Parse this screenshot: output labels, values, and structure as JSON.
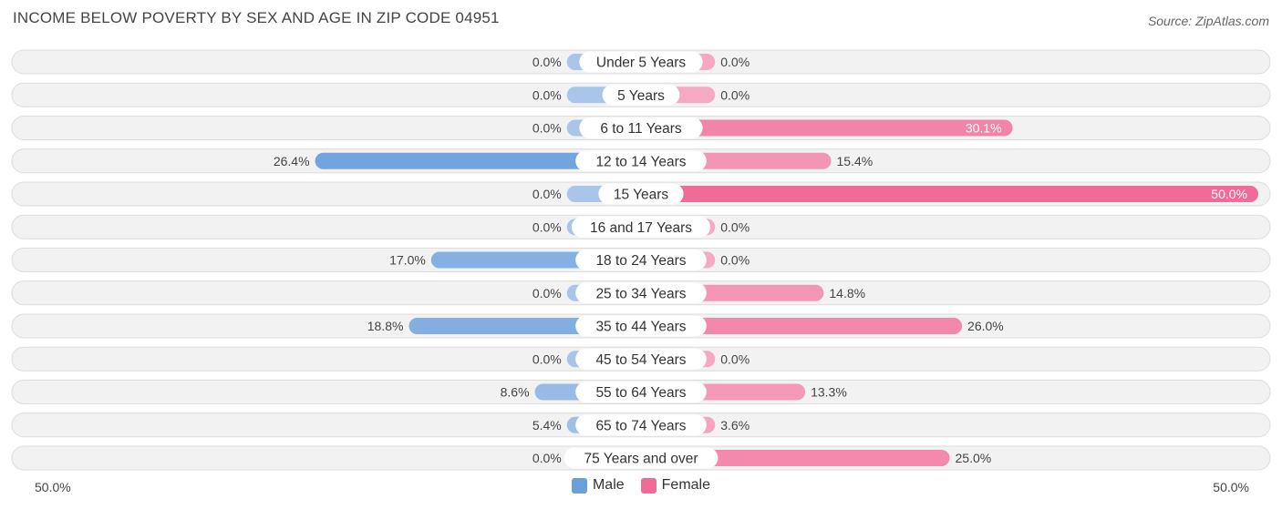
{
  "title": "INCOME BELOW POVERTY BY SEX AND AGE IN ZIP CODE 04951",
  "source": "Source: ZipAtlas.com",
  "colors": {
    "male_light": "#a9c6ea",
    "male_dark": "#6a9fdc",
    "female_light": "#f5a9c3",
    "female_dark": "#f06b97"
  },
  "chart_data": {
    "type": "bar",
    "orientation": "horizontal-diverging",
    "title": "INCOME BELOW POVERTY BY SEX AND AGE IN ZIP CODE 04951",
    "categories": [
      "Under 5 Years",
      "5 Years",
      "6 to 11 Years",
      "12 to 14 Years",
      "15 Years",
      "16 and 17 Years",
      "18 to 24 Years",
      "25 to 34 Years",
      "35 to 44 Years",
      "45 to 54 Years",
      "55 to 64 Years",
      "65 to 74 Years",
      "75 Years and over"
    ],
    "series": [
      {
        "name": "Male",
        "values": [
          0.0,
          0.0,
          0.0,
          26.4,
          0.0,
          0.0,
          17.0,
          0.0,
          18.8,
          0.0,
          8.6,
          5.4,
          0.0
        ]
      },
      {
        "name": "Female",
        "values": [
          0.0,
          0.0,
          30.1,
          15.4,
          50.0,
          0.0,
          0.0,
          14.8,
          26.0,
          0.0,
          13.3,
          3.6,
          25.0
        ]
      }
    ],
    "labels": {
      "Male": [
        "0.0%",
        "0.0%",
        "0.0%",
        "26.4%",
        "0.0%",
        "0.0%",
        "17.0%",
        "0.0%",
        "18.8%",
        "0.0%",
        "8.6%",
        "5.4%",
        "0.0%"
      ],
      "Female": [
        "0.0%",
        "0.0%",
        "30.1%",
        "15.4%",
        "50.0%",
        "0.0%",
        "0.0%",
        "14.8%",
        "26.0%",
        "0.0%",
        "13.3%",
        "3.6%",
        "25.0%"
      ]
    },
    "xlim": [
      -50,
      50
    ],
    "axis_left_label": "50.0%",
    "axis_right_label": "50.0%",
    "legend": [
      "Male",
      "Female"
    ],
    "legend_position": "bottom-center"
  }
}
